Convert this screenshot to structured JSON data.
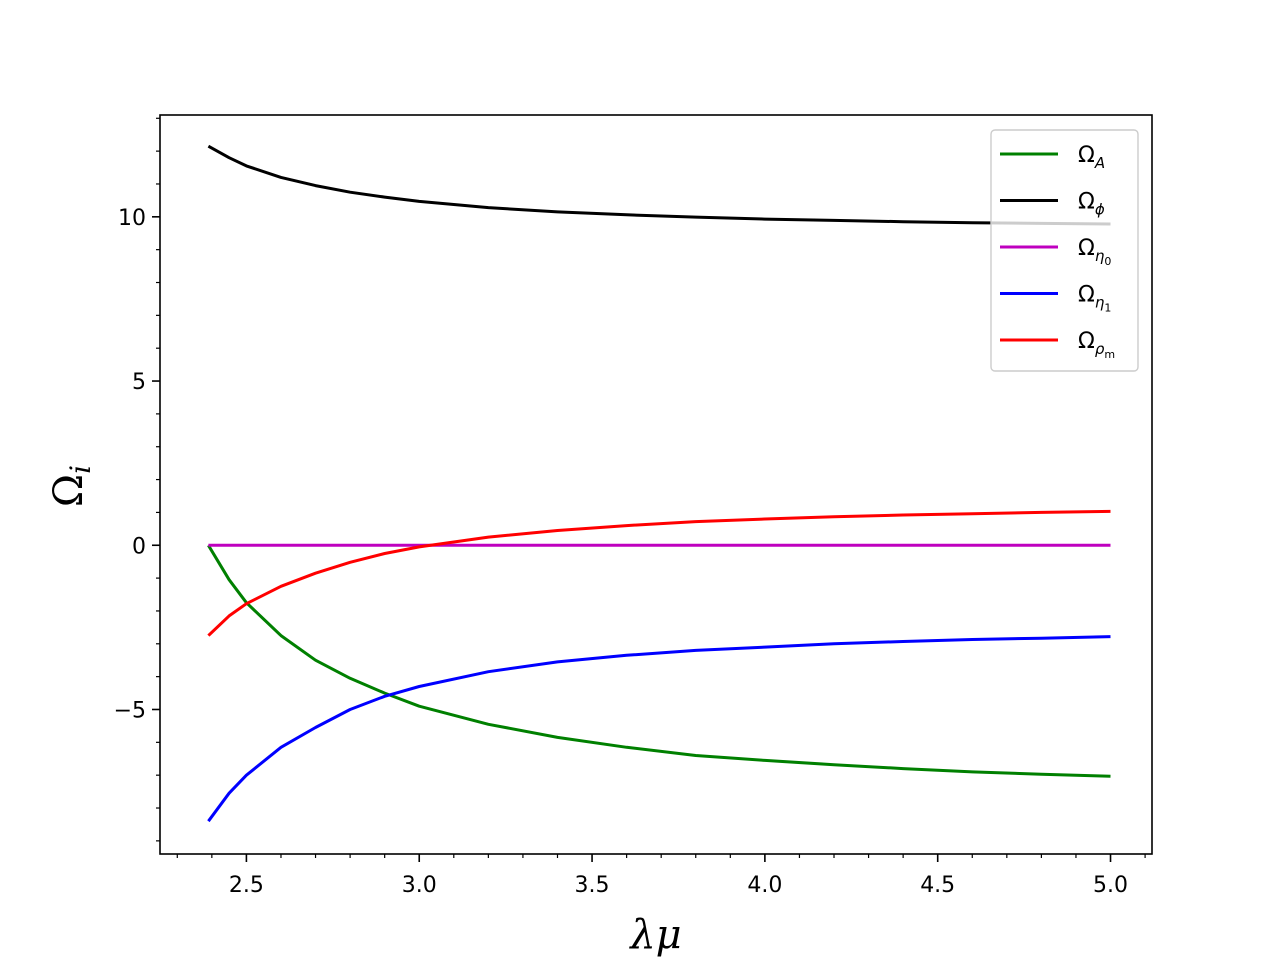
{
  "chart_data": {
    "type": "line",
    "xlabel": "λμ",
    "ylabel": "Ω",
    "ylabel_sub": "i",
    "xlim": [
      2.25,
      5.12
    ],
    "ylim": [
      -9.4,
      13.1
    ],
    "x_ticks": [
      2.5,
      3.0,
      3.5,
      4.0,
      4.5,
      5.0
    ],
    "x_tick_labels": [
      "2.5",
      "3.0",
      "3.5",
      "4.0",
      "4.5",
      "5.0"
    ],
    "y_ticks": [
      -5,
      0,
      5,
      10
    ],
    "y_tick_labels": [
      "−5",
      "0",
      "5",
      "10"
    ],
    "grid": false,
    "legend_position": "top-right",
    "series": [
      {
        "name": "Ω_A",
        "base": "Ω",
        "sub": "A",
        "subsub": "",
        "color": "#008000",
        "x": [
          2.39,
          2.45,
          2.5,
          2.6,
          2.7,
          2.8,
          2.9,
          3.0,
          3.2,
          3.4,
          3.6,
          3.8,
          4.0,
          4.2,
          4.4,
          4.6,
          4.8,
          5.0
        ],
        "y": [
          0.0,
          -1.05,
          -1.75,
          -2.75,
          -3.5,
          -4.05,
          -4.5,
          -4.9,
          -5.45,
          -5.85,
          -6.15,
          -6.4,
          -6.55,
          -6.68,
          -6.8,
          -6.9,
          -6.97,
          -7.03
        ]
      },
      {
        "name": "Ω_ϕ",
        "base": "Ω",
        "sub": "ϕ",
        "subsub": "",
        "color": "#000000",
        "x": [
          2.39,
          2.45,
          2.5,
          2.6,
          2.7,
          2.8,
          2.9,
          3.0,
          3.2,
          3.4,
          3.6,
          3.8,
          4.0,
          4.2,
          4.4,
          4.6,
          4.8,
          5.0
        ],
        "y": [
          12.15,
          11.8,
          11.55,
          11.2,
          10.95,
          10.75,
          10.6,
          10.47,
          10.28,
          10.15,
          10.06,
          9.99,
          9.93,
          9.89,
          9.85,
          9.82,
          9.8,
          9.78
        ]
      },
      {
        "name": "Ω_η0",
        "base": "Ω",
        "sub": "η",
        "subsub": "0",
        "color": "#bf00bf",
        "x": [
          2.39,
          5.0
        ],
        "y": [
          0.0,
          0.0
        ]
      },
      {
        "name": "Ω_η1",
        "base": "Ω",
        "sub": "η",
        "subsub": "1",
        "color": "#0000ff",
        "x": [
          2.39,
          2.45,
          2.5,
          2.6,
          2.7,
          2.8,
          2.9,
          3.0,
          3.2,
          3.4,
          3.6,
          3.8,
          4.0,
          4.2,
          4.4,
          4.6,
          4.8,
          5.0
        ],
        "y": [
          -8.4,
          -7.55,
          -7.0,
          -6.15,
          -5.55,
          -5.0,
          -4.6,
          -4.3,
          -3.85,
          -3.55,
          -3.35,
          -3.2,
          -3.1,
          -3.0,
          -2.93,
          -2.87,
          -2.83,
          -2.78
        ]
      },
      {
        "name": "Ω_ρm",
        "base": "Ω",
        "sub": "ρ",
        "subsub": "m",
        "color": "#ff0000",
        "x": [
          2.39,
          2.45,
          2.5,
          2.6,
          2.7,
          2.8,
          2.9,
          3.0,
          3.1,
          3.2,
          3.4,
          3.6,
          3.8,
          4.0,
          4.2,
          4.4,
          4.6,
          4.8,
          5.0
        ],
        "y": [
          -2.75,
          -2.15,
          -1.78,
          -1.25,
          -0.85,
          -0.52,
          -0.25,
          -0.05,
          0.1,
          0.25,
          0.45,
          0.6,
          0.72,
          0.8,
          0.87,
          0.92,
          0.96,
          1.0,
          1.03
        ]
      }
    ]
  }
}
